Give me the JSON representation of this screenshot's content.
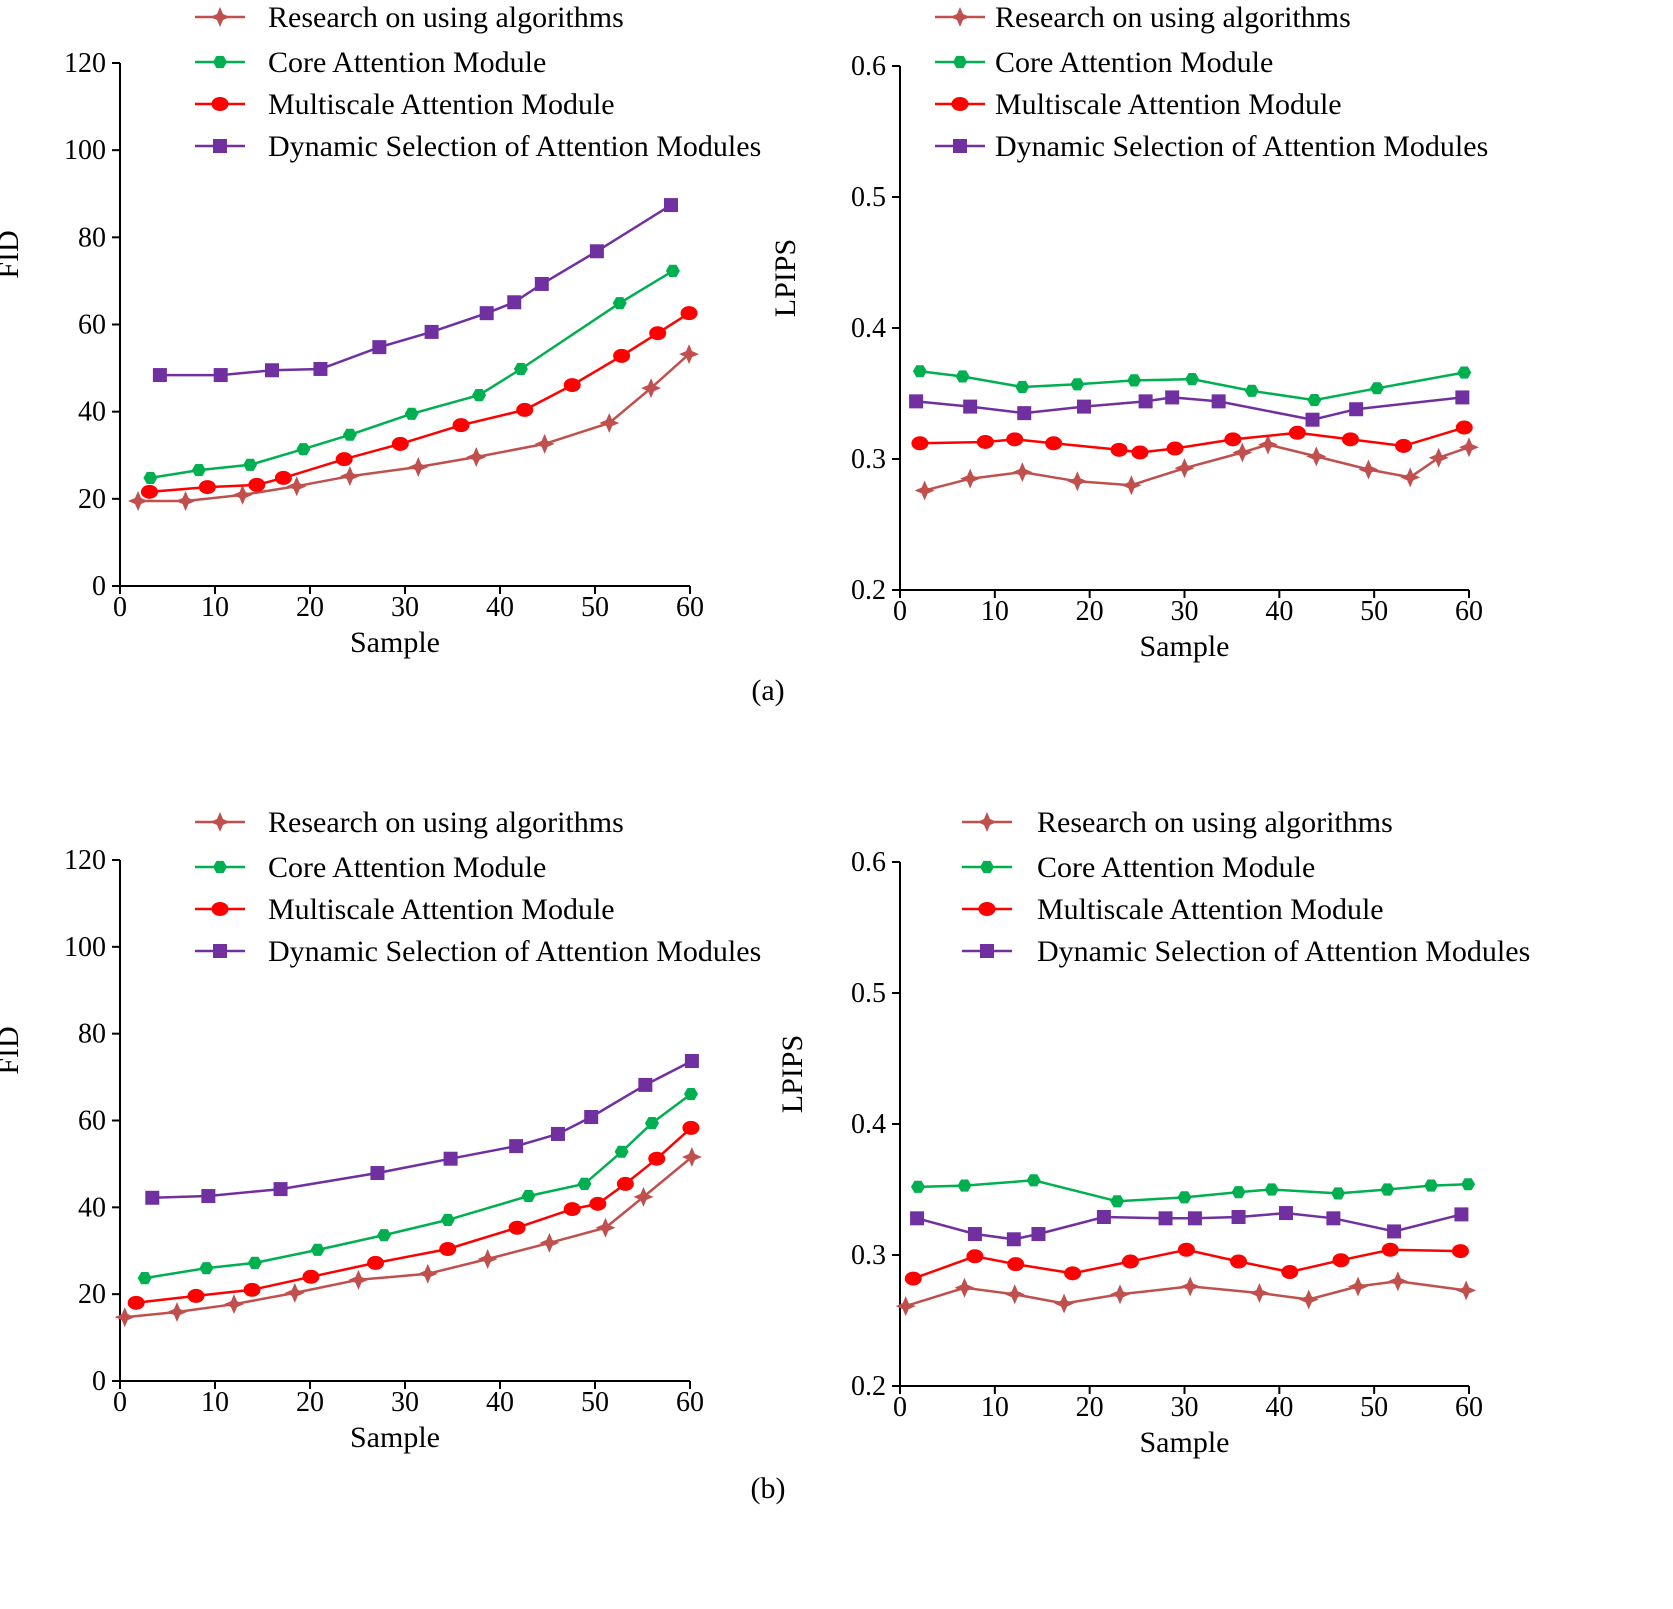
{
  "colors": {
    "research": "#c0504d",
    "core": "#00b050",
    "multiscale": "#ff0000",
    "dynamic": "#7030a0"
  },
  "captions": [
    "(a)",
    "(b)"
  ],
  "chart_data": [
    {
      "type": "line",
      "group": "(a)",
      "xlabel": "Sample",
      "ylabel": "FID",
      "xlim": [
        0,
        60
      ],
      "ylim": [
        0,
        120
      ],
      "xticks": [
        0,
        10,
        20,
        30,
        40,
        50,
        60
      ],
      "yticks": [
        0,
        20,
        40,
        60,
        80,
        100,
        120
      ],
      "legend": "top",
      "grid": false,
      "series": [
        {
          "name": "Research on using algorithms",
          "color": "#c0504d",
          "marker": "star",
          "points": [
            [
              1.9,
              19.5
            ],
            [
              6.9,
              19.5
            ],
            [
              12.9,
              20.9
            ],
            [
              18.6,
              22.9
            ],
            [
              24.2,
              25.2
            ],
            [
              31.4,
              27.3
            ],
            [
              37.5,
              29.6
            ],
            [
              44.7,
              32.6
            ],
            [
              51.5,
              37.4
            ],
            [
              55.9,
              45.4
            ],
            [
              59.9,
              53.2
            ]
          ]
        },
        {
          "name": "Core Attention Module",
          "color": "#00b050",
          "marker": "hexagon",
          "points": [
            [
              3.2,
              24.8
            ],
            [
              8.3,
              26.6
            ],
            [
              13.7,
              27.8
            ],
            [
              19.3,
              31.4
            ],
            [
              24.2,
              34.7
            ],
            [
              30.7,
              39.5
            ],
            [
              37.8,
              43.8
            ],
            [
              42.2,
              49.8
            ],
            [
              52.6,
              64.9
            ],
            [
              58.2,
              72.3
            ]
          ]
        },
        {
          "name": "Multiscale Attention Module",
          "color": "#ff0000",
          "marker": "circle",
          "points": [
            [
              3.1,
              21.6
            ],
            [
              9.2,
              22.7
            ],
            [
              14.4,
              23.2
            ],
            [
              17.2,
              24.8
            ],
            [
              23.6,
              29.1
            ],
            [
              29.5,
              32.6
            ],
            [
              35.9,
              36.9
            ],
            [
              42.6,
              40.4
            ],
            [
              47.6,
              46.1
            ],
            [
              52.8,
              52.8
            ],
            [
              56.6,
              58.0
            ],
            [
              59.9,
              62.6
            ]
          ]
        },
        {
          "name": "Dynamic Selection of Attention Modules",
          "color": "#7030a0",
          "marker": "square",
          "points": [
            [
              4.2,
              48.4
            ],
            [
              10.6,
              48.4
            ],
            [
              16.0,
              49.5
            ],
            [
              21.1,
              49.8
            ],
            [
              27.3,
              54.8
            ],
            [
              32.8,
              58.3
            ],
            [
              38.6,
              62.6
            ],
            [
              41.5,
              65.1
            ],
            [
              44.4,
              69.3
            ],
            [
              50.2,
              76.8
            ],
            [
              58.0,
              87.4
            ]
          ]
        }
      ]
    },
    {
      "type": "line",
      "group": "(a)",
      "xlabel": "Sample",
      "ylabel": "LPIPS",
      "xlim": [
        0,
        60
      ],
      "ylim": [
        0.2,
        0.6
      ],
      "xticks": [
        0,
        10,
        20,
        30,
        40,
        50,
        60
      ],
      "yticks": [
        0.2,
        0.3,
        0.4,
        0.5,
        0.6
      ],
      "legend": "top",
      "grid": false,
      "series": [
        {
          "name": "Research on using algorithms",
          "color": "#c0504d",
          "marker": "star",
          "points": [
            [
              2.6,
              0.276
            ],
            [
              7.4,
              0.285
            ],
            [
              12.9,
              0.29
            ],
            [
              18.7,
              0.283
            ],
            [
              24.4,
              0.28
            ],
            [
              30.0,
              0.293
            ],
            [
              36.1,
              0.305
            ],
            [
              38.8,
              0.311
            ],
            [
              43.9,
              0.302
            ],
            [
              49.4,
              0.292
            ],
            [
              53.8,
              0.286
            ],
            [
              56.8,
              0.301
            ],
            [
              60.0,
              0.309
            ]
          ]
        },
        {
          "name": "Core Attention Module",
          "color": "#00b050",
          "marker": "hexagon",
          "points": [
            [
              2.1,
              0.367
            ],
            [
              6.6,
              0.363
            ],
            [
              12.9,
              0.355
            ],
            [
              18.7,
              0.357
            ],
            [
              24.7,
              0.36
            ],
            [
              30.8,
              0.361
            ],
            [
              37.1,
              0.352
            ],
            [
              43.7,
              0.345
            ],
            [
              50.3,
              0.354
            ],
            [
              59.5,
              0.366
            ]
          ]
        },
        {
          "name": "Multiscale Attention Module",
          "color": "#ff0000",
          "marker": "circle",
          "points": [
            [
              2.1,
              0.312
            ],
            [
              9.0,
              0.313
            ],
            [
              12.1,
              0.315
            ],
            [
              16.2,
              0.312
            ],
            [
              23.1,
              0.307
            ],
            [
              25.3,
              0.305
            ],
            [
              29.0,
              0.308
            ],
            [
              35.1,
              0.315
            ],
            [
              41.9,
              0.32
            ],
            [
              47.5,
              0.315
            ],
            [
              53.1,
              0.31
            ],
            [
              59.5,
              0.324
            ]
          ]
        },
        {
          "name": "Dynamic Selection of Attention Modules",
          "color": "#7030a0",
          "marker": "square",
          "points": [
            [
              1.7,
              0.344
            ],
            [
              7.4,
              0.34
            ],
            [
              13.1,
              0.335
            ],
            [
              19.4,
              0.34
            ],
            [
              25.9,
              0.344
            ],
            [
              28.7,
              0.347
            ],
            [
              33.6,
              0.344
            ],
            [
              43.5,
              0.33
            ],
            [
              48.1,
              0.338
            ],
            [
              59.3,
              0.347
            ]
          ]
        }
      ]
    },
    {
      "type": "line",
      "group": "(b)",
      "xlabel": "Sample",
      "ylabel": "FID",
      "xlim": [
        0,
        60
      ],
      "ylim": [
        0,
        120
      ],
      "xticks": [
        0,
        10,
        20,
        30,
        40,
        50,
        60
      ],
      "yticks": [
        0,
        20,
        40,
        60,
        80,
        100,
        120
      ],
      "legend": "top",
      "grid": false,
      "series": [
        {
          "name": "Research on using algorithms",
          "color": "#c0504d",
          "marker": "star",
          "points": [
            [
              0.5,
              14.7
            ],
            [
              6.0,
              15.9
            ],
            [
              12.0,
              17.7
            ],
            [
              18.4,
              20.3
            ],
            [
              25.1,
              23.3
            ],
            [
              32.4,
              24.7
            ],
            [
              38.7,
              28.1
            ],
            [
              45.2,
              31.8
            ],
            [
              51.1,
              35.3
            ],
            [
              55.1,
              42.4
            ],
            [
              60.2,
              51.6
            ]
          ]
        },
        {
          "name": "Core Attention Module",
          "color": "#00b050",
          "marker": "hexagon",
          "points": [
            [
              2.6,
              23.7
            ],
            [
              9.1,
              26.0
            ],
            [
              14.2,
              27.2
            ],
            [
              20.8,
              30.2
            ],
            [
              27.8,
              33.6
            ],
            [
              34.5,
              37.1
            ],
            [
              43.0,
              42.6
            ],
            [
              48.9,
              45.4
            ],
            [
              52.8,
              52.8
            ],
            [
              56.0,
              59.4
            ],
            [
              60.1,
              66.1
            ]
          ]
        },
        {
          "name": "Multiscale Attention Module",
          "color": "#ff0000",
          "marker": "circle",
          "points": [
            [
              1.7,
              18.0
            ],
            [
              8.0,
              19.6
            ],
            [
              13.9,
              21.0
            ],
            [
              20.1,
              24.0
            ],
            [
              26.9,
              27.2
            ],
            [
              34.5,
              30.4
            ],
            [
              41.8,
              35.3
            ],
            [
              47.6,
              39.6
            ],
            [
              50.3,
              40.8
            ],
            [
              53.2,
              45.4
            ],
            [
              56.5,
              51.2
            ],
            [
              60.1,
              58.3
            ]
          ]
        },
        {
          "name": "Dynamic Selection of Attention Modules",
          "color": "#7030a0",
          "marker": "square",
          "points": [
            [
              3.4,
              42.2
            ],
            [
              9.3,
              42.6
            ],
            [
              16.9,
              44.2
            ],
            [
              27.1,
              47.9
            ],
            [
              34.8,
              51.2
            ],
            [
              41.7,
              54.1
            ],
            [
              46.1,
              56.9
            ],
            [
              49.6,
              60.8
            ],
            [
              55.3,
              68.2
            ],
            [
              60.2,
              73.7
            ]
          ]
        }
      ]
    },
    {
      "type": "line",
      "group": "(b)",
      "xlabel": "Sample",
      "ylabel": "LPIPS",
      "xlim": [
        0,
        60
      ],
      "ylim": [
        0.2,
        0.6
      ],
      "xticks": [
        0,
        10,
        20,
        30,
        40,
        50,
        60
      ],
      "yticks": [
        0.2,
        0.3,
        0.4,
        0.5,
        0.6
      ],
      "legend": "top",
      "grid": false,
      "series": [
        {
          "name": "Research on using algorithms",
          "color": "#c0504d",
          "marker": "star",
          "points": [
            [
              0.6,
              0.261
            ],
            [
              6.8,
              0.275
            ],
            [
              12.1,
              0.27
            ],
            [
              17.3,
              0.263
            ],
            [
              23.2,
              0.27
            ],
            [
              30.6,
              0.276
            ],
            [
              37.9,
              0.271
            ],
            [
              43.1,
              0.266
            ],
            [
              48.3,
              0.276
            ],
            [
              52.5,
              0.28
            ],
            [
              59.7,
              0.273
            ]
          ]
        },
        {
          "name": "Core Attention Module",
          "color": "#00b050",
          "marker": "hexagon",
          "points": [
            [
              1.9,
              0.352
            ],
            [
              6.8,
              0.353
            ],
            [
              14.1,
              0.357
            ],
            [
              22.9,
              0.341
            ],
            [
              30.0,
              0.344
            ],
            [
              35.7,
              0.348
            ],
            [
              39.2,
              0.35
            ],
            [
              46.2,
              0.347
            ],
            [
              51.4,
              0.35
            ],
            [
              56.0,
              0.353
            ],
            [
              59.9,
              0.354
            ]
          ]
        },
        {
          "name": "Multiscale Attention Module",
          "color": "#ff0000",
          "marker": "circle",
          "points": [
            [
              1.4,
              0.282
            ],
            [
              7.9,
              0.299
            ],
            [
              12.2,
              0.293
            ],
            [
              18.2,
              0.286
            ],
            [
              24.3,
              0.295
            ],
            [
              30.2,
              0.304
            ],
            [
              35.7,
              0.295
            ],
            [
              41.1,
              0.287
            ],
            [
              46.5,
              0.296
            ],
            [
              51.7,
              0.304
            ],
            [
              59.1,
              0.303
            ]
          ]
        },
        {
          "name": "Dynamic Selection of Attention Modules",
          "color": "#7030a0",
          "marker": "square",
          "points": [
            [
              1.8,
              0.328
            ],
            [
              7.9,
              0.316
            ],
            [
              12.0,
              0.312
            ],
            [
              14.6,
              0.316
            ],
            [
              21.5,
              0.329
            ],
            [
              28.0,
              0.328
            ],
            [
              31.1,
              0.328
            ],
            [
              35.7,
              0.329
            ],
            [
              40.7,
              0.332
            ],
            [
              45.7,
              0.328
            ],
            [
              52.1,
              0.318
            ],
            [
              59.2,
              0.331
            ]
          ]
        }
      ]
    }
  ]
}
